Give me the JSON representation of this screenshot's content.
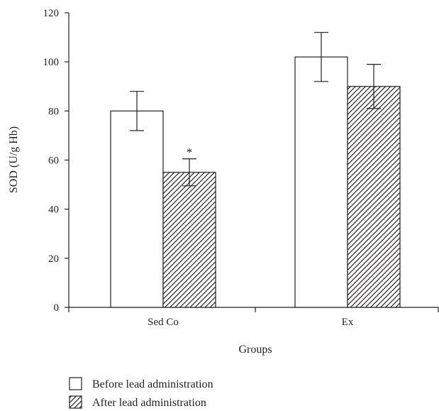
{
  "chart_data": {
    "type": "bar",
    "title": "",
    "xlabel": "Groups",
    "ylabel": "SOD (U/g Hb)",
    "categories": [
      "Sed Co",
      "Ex"
    ],
    "ylim": [
      0,
      120
    ],
    "yticks": [
      0,
      20,
      40,
      60,
      80,
      100,
      120
    ],
    "grid": false,
    "legend_position": "bottom-left",
    "series": [
      {
        "name": "Before lead administration",
        "values": [
          80,
          102
        ],
        "errors": [
          8,
          10
        ],
        "fill": "white"
      },
      {
        "name": "After lead administration",
        "values": [
          55,
          90
        ],
        "errors": [
          5.5,
          9
        ],
        "fill": "hatched"
      }
    ],
    "annotations": [
      {
        "text": "*",
        "category": "Sed Co",
        "series": "After lead administration"
      }
    ]
  }
}
